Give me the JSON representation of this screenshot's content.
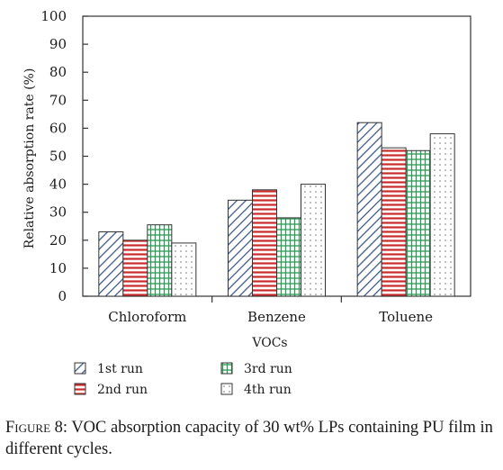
{
  "chart_data": {
    "type": "bar",
    "categories": [
      "Chloroform",
      "Benzene",
      "Toluene"
    ],
    "series": [
      {
        "name": "1st run",
        "values": [
          23,
          34.3,
          62
        ],
        "color": "#3f5a8a",
        "pattern": "diagonal-hatch"
      },
      {
        "name": "2nd run",
        "values": [
          20,
          38,
          53
        ],
        "color": "#cc2a2a",
        "pattern": "horizontal-lines"
      },
      {
        "name": "3rd run",
        "values": [
          25.5,
          28,
          52
        ],
        "color": "#2e9a57",
        "pattern": "grid"
      },
      {
        "name": "4th run",
        "values": [
          19,
          40,
          58
        ],
        "color": "#666666",
        "pattern": "dots"
      }
    ],
    "xlabel": "VOCs",
    "ylabel": "Relative absorption rate (%)",
    "ylim": [
      0,
      100
    ],
    "yticks": [
      0,
      10,
      20,
      30,
      40,
      50,
      60,
      70,
      80,
      90,
      100
    ],
    "legend": "bottom",
    "grid": false
  },
  "caption": {
    "prefix": "Figure 8:",
    "text": " VOC absorption capacity of 30 wt% LPs containing PU film in different cycles."
  }
}
